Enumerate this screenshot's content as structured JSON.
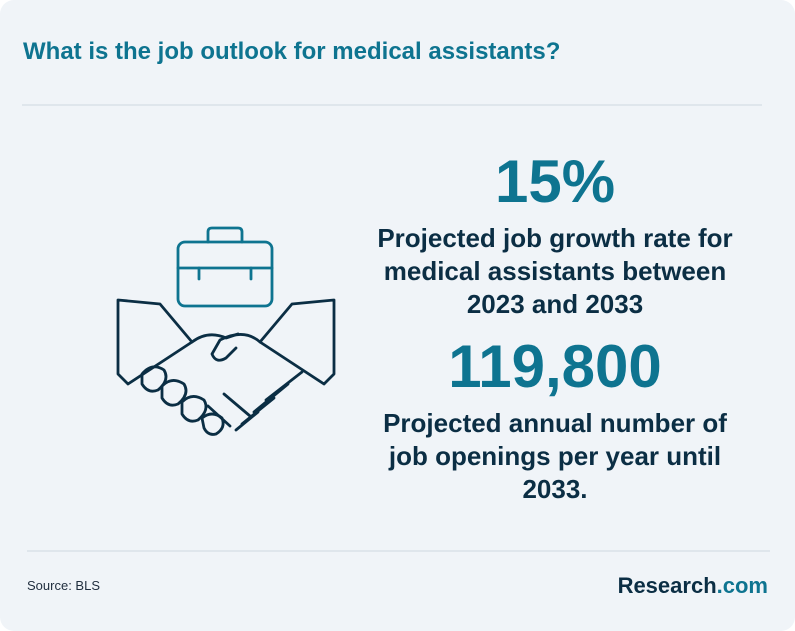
{
  "title": "What is the job outlook for medical assistants?",
  "stats": [
    {
      "value": "15%",
      "description": "Projected job growth rate for medical assistants between 2023 and 2033"
    },
    {
      "value": "119,800",
      "description": "Projected annual number of job openings per year until 2033."
    }
  ],
  "source": "Source: BLS",
  "logo": {
    "name": "Research",
    "suffix": ".com"
  },
  "icons": [
    "briefcase-icon",
    "handshake-icon"
  ],
  "colors": {
    "accent": "#0e7490",
    "text_dark": "#0b2e44",
    "background": "#f0f4f8"
  }
}
